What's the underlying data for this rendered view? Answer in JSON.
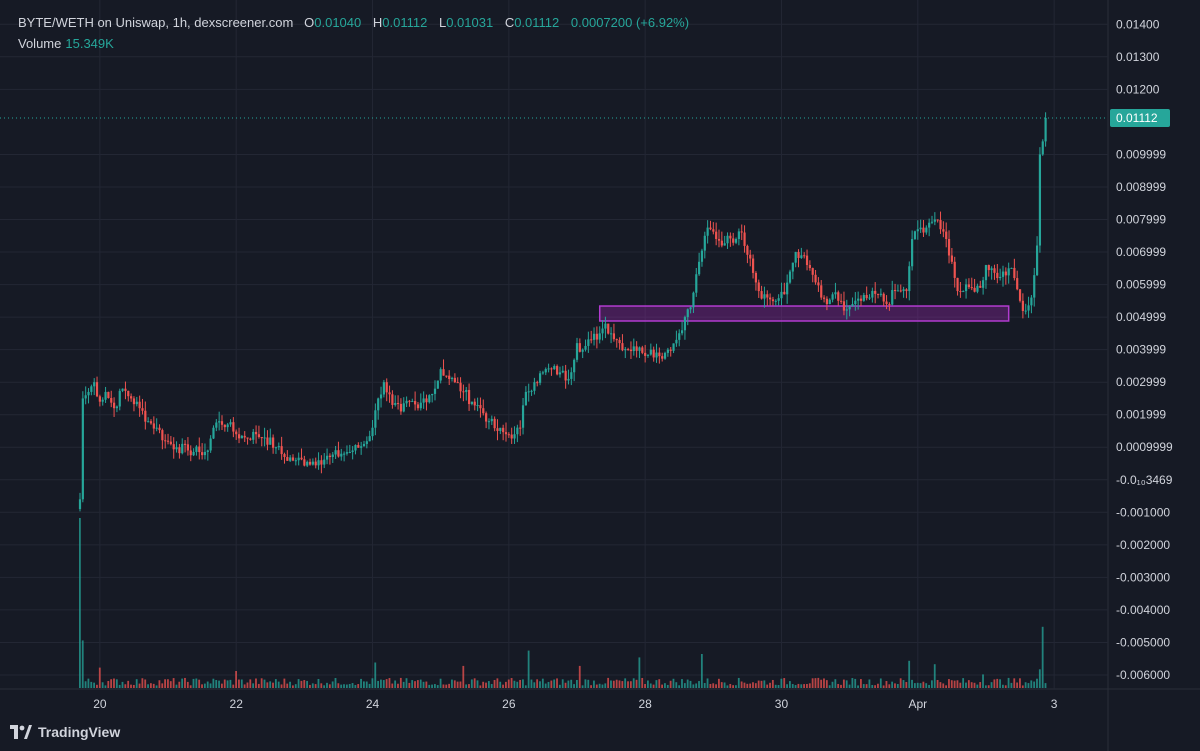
{
  "header": {
    "symbol": "BYTE/WETH on Uniswap, 1h, dexscreener.com",
    "o_label": "O",
    "o_value": "0.01040",
    "h_label": "H",
    "h_value": "0.01112",
    "l_label": "L",
    "l_value": "0.01031",
    "c_label": "C",
    "c_value": "0.01112",
    "change": "0.0007200 (+6.92%)",
    "volume_label": "Volume",
    "volume_value": "15.349K"
  },
  "brand": {
    "name": "TradingView",
    "icon": "tradingview-logo-icon"
  },
  "colors": {
    "up": "#26a69a",
    "down": "#ef5350",
    "zone": "#9c27b0",
    "background": "#161a25",
    "grid": "#232734"
  },
  "chart_data": {
    "type": "candlestick",
    "interval": "1h",
    "ylim": [
      -0.0064,
      0.0145
    ],
    "y_tick_labels": [
      "0.01400",
      "0.01300",
      "0.01200",
      "0.01112",
      "0.009999",
      "0.008999",
      "0.007999",
      "0.006999",
      "0.005999",
      "0.004999",
      "0.003999",
      "0.002999",
      "0.001999",
      "0.0009999",
      "-0.0₁₀3469",
      "-0.001000",
      "-0.002000",
      "-0.003000",
      "-0.004000",
      "-0.005000",
      "-0.006000"
    ],
    "y_tick_values": [
      0.014,
      0.013,
      0.012,
      0.01112,
      0.009999,
      0.008999,
      0.007999,
      0.006999,
      0.005999,
      0.004999,
      0.003999,
      0.002999,
      0.001999,
      0.0009999,
      0.0,
      -0.001,
      -0.002,
      -0.003,
      -0.004,
      -0.005,
      -0.006
    ],
    "x_tick_labels": [
      "20",
      "22",
      "24",
      "26",
      "28",
      "30",
      "Apr",
      "3"
    ],
    "x_tick_hours": [
      7,
      55,
      103,
      151,
      199,
      247,
      295,
      343
    ],
    "last_price": 0.01112,
    "last_price_label": "0.01112",
    "support_zone": {
      "from_hour": 183,
      "to_hour": 327,
      "low": 0.00488,
      "high": 0.00534
    },
    "close_path": [
      [
        0,
        -0.0006
      ],
      [
        1,
        0.0025
      ],
      [
        3,
        0.0027
      ],
      [
        5,
        0.003
      ],
      [
        7,
        0.0024
      ],
      [
        9,
        0.0027
      ],
      [
        12,
        0.0022
      ],
      [
        15,
        0.0028
      ],
      [
        18,
        0.0025
      ],
      [
        21,
        0.0022
      ],
      [
        24,
        0.0018
      ],
      [
        27,
        0.0016
      ],
      [
        30,
        0.0012
      ],
      [
        34,
        0.001
      ],
      [
        38,
        0.0009
      ],
      [
        42,
        0.00085
      ],
      [
        45,
        0.0009
      ],
      [
        47,
        0.0016
      ],
      [
        49,
        0.0018
      ],
      [
        52,
        0.0017
      ],
      [
        55,
        0.0014
      ],
      [
        58,
        0.0013
      ],
      [
        62,
        0.0014
      ],
      [
        65,
        0.0013
      ],
      [
        69,
        0.001
      ],
      [
        72,
        0.0007
      ],
      [
        76,
        0.0006
      ],
      [
        80,
        0.00055
      ],
      [
        84,
        0.0006
      ],
      [
        88,
        0.0007
      ],
      [
        92,
        0.0008
      ],
      [
        96,
        0.0009
      ],
      [
        100,
        0.0011
      ],
      [
        103,
        0.0016
      ],
      [
        105,
        0.0025
      ],
      [
        107,
        0.003
      ],
      [
        110,
        0.0023
      ],
      [
        113,
        0.0021
      ],
      [
        116,
        0.0024
      ],
      [
        119,
        0.0022
      ],
      [
        121,
        0.0025
      ],
      [
        123,
        0.0026
      ],
      [
        125,
        0.0028
      ],
      [
        127,
        0.0034
      ],
      [
        129,
        0.0032
      ],
      [
        132,
        0.003
      ],
      [
        135,
        0.0027
      ],
      [
        138,
        0.0024
      ],
      [
        141,
        0.0022
      ],
      [
        144,
        0.0018
      ],
      [
        147,
        0.0015
      ],
      [
        150,
        0.0014
      ],
      [
        153,
        0.0014
      ],
      [
        155,
        0.0016
      ],
      [
        157,
        0.0027
      ],
      [
        160,
        0.003
      ],
      [
        163,
        0.0033
      ],
      [
        166,
        0.0034
      ],
      [
        169,
        0.0033
      ],
      [
        172,
        0.0031
      ],
      [
        175,
        0.0042
      ],
      [
        177,
        0.004
      ],
      [
        180,
        0.0043
      ],
      [
        183,
        0.0045
      ],
      [
        185,
        0.0048
      ],
      [
        187,
        0.0045
      ],
      [
        190,
        0.0042
      ],
      [
        193,
        0.004
      ],
      [
        195,
        0.0041
      ],
      [
        198,
        0.0039
      ],
      [
        201,
        0.004
      ],
      [
        204,
        0.0038
      ],
      [
        207,
        0.004
      ],
      [
        210,
        0.0043
      ],
      [
        213,
        0.005
      ],
      [
        215,
        0.0053
      ],
      [
        218,
        0.0067
      ],
      [
        220,
        0.0075
      ],
      [
        222,
        0.0077
      ],
      [
        224,
        0.0074
      ],
      [
        226,
        0.0072
      ],
      [
        228,
        0.0075
      ],
      [
        231,
        0.0074
      ],
      [
        233,
        0.0076
      ],
      [
        236,
        0.0068
      ],
      [
        239,
        0.0058
      ],
      [
        242,
        0.0056
      ],
      [
        245,
        0.0055
      ],
      [
        248,
        0.0057
      ],
      [
        250,
        0.0064
      ],
      [
        252,
        0.007
      ],
      [
        254,
        0.0069
      ],
      [
        256,
        0.0066
      ],
      [
        258,
        0.0063
      ],
      [
        261,
        0.0056
      ],
      [
        263,
        0.0054
      ],
      [
        265,
        0.0057
      ],
      [
        267,
        0.0055
      ],
      [
        269,
        0.0052
      ],
      [
        272,
        0.0054
      ],
      [
        275,
        0.0055
      ],
      [
        278,
        0.0056
      ],
      [
        281,
        0.0057
      ],
      [
        284,
        0.0054
      ],
      [
        287,
        0.0058
      ],
      [
        289,
        0.0058
      ],
      [
        291,
        0.0058
      ],
      [
        293,
        0.0074
      ],
      [
        295,
        0.0077
      ],
      [
        297,
        0.0076
      ],
      [
        299,
        0.0079
      ],
      [
        301,
        0.008
      ],
      [
        303,
        0.0077
      ],
      [
        305,
        0.0074
      ],
      [
        307,
        0.0067
      ],
      [
        309,
        0.0058
      ],
      [
        311,
        0.0058
      ],
      [
        314,
        0.0059
      ],
      [
        317,
        0.0059
      ],
      [
        319,
        0.0066
      ],
      [
        321,
        0.0065
      ],
      [
        323,
        0.0062
      ],
      [
        325,
        0.0064
      ],
      [
        327,
        0.0065
      ],
      [
        329,
        0.0062
      ],
      [
        331,
        0.0055
      ],
      [
        333,
        0.0052
      ],
      [
        335,
        0.0056
      ],
      [
        337,
        0.0072
      ],
      [
        338,
        0.01
      ],
      [
        339,
        0.0104
      ],
      [
        340,
        0.01112
      ]
    ],
    "volume_ylim": [
      0,
      1
    ],
    "volume_spikes": [
      [
        0,
        1.0
      ],
      [
        1,
        0.28
      ],
      [
        7,
        0.12
      ],
      [
        23,
        0.05
      ],
      [
        55,
        0.1
      ],
      [
        104,
        0.15
      ],
      [
        135,
        0.13
      ],
      [
        158,
        0.22
      ],
      [
        176,
        0.13
      ],
      [
        197,
        0.18
      ],
      [
        219,
        0.2
      ],
      [
        292,
        0.16
      ],
      [
        301,
        0.14
      ],
      [
        318,
        0.08
      ],
      [
        338,
        0.11
      ],
      [
        339,
        0.36
      ]
    ]
  }
}
